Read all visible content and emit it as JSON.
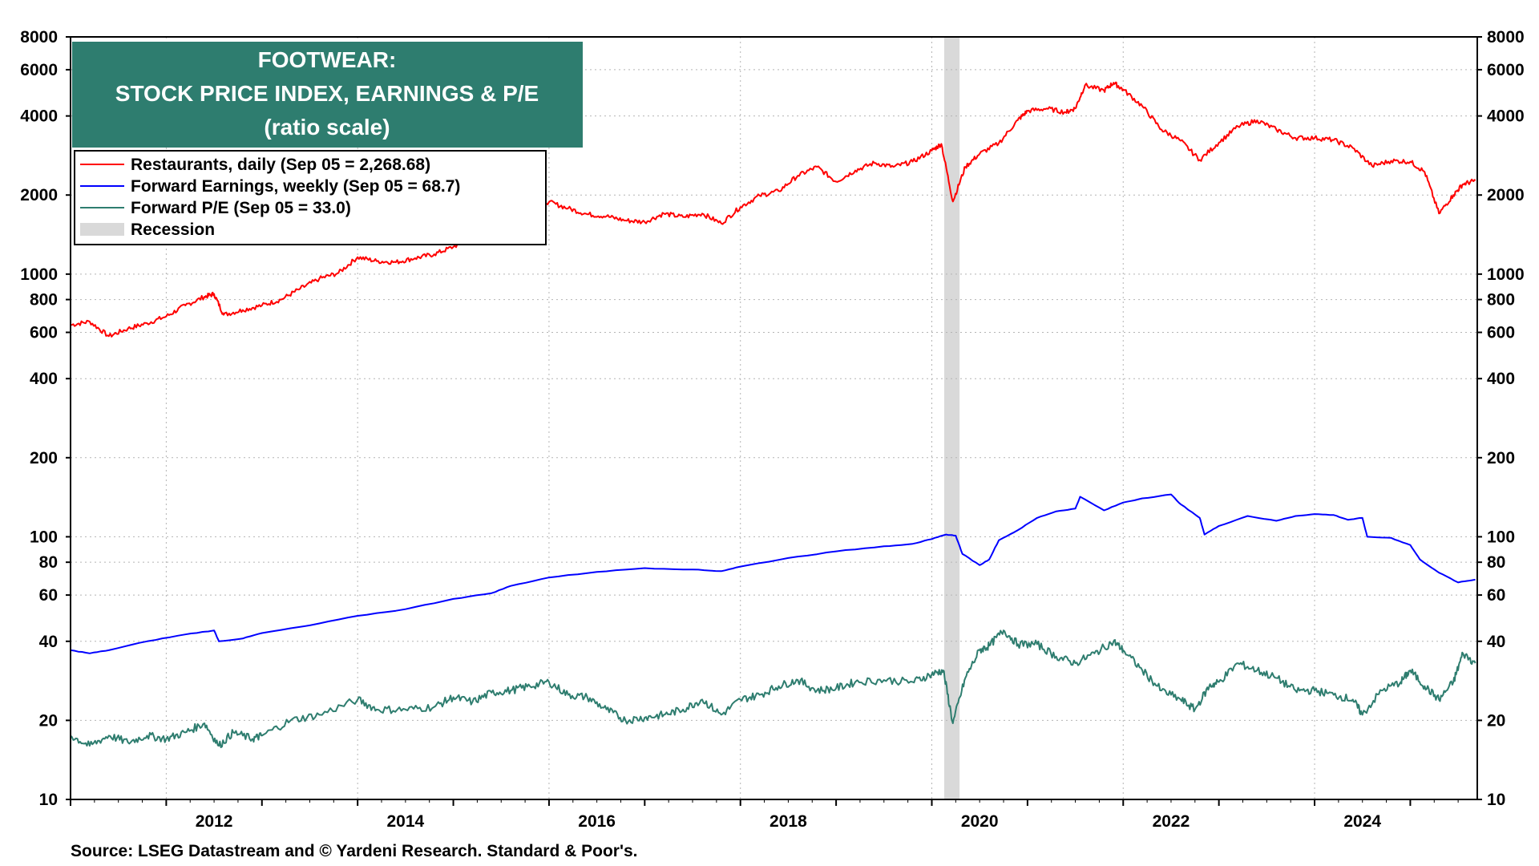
{
  "chart_data": {
    "type": "line",
    "title": [
      "FOOTWEAR:",
      "STOCK PRICE INDEX, EARNINGS & P/E",
      "(ratio scale)"
    ],
    "source": "Source: LSEG Datastream and © Yardeni Research. Standard & Poor's.",
    "y_scale": "log",
    "ylim": [
      10,
      8000
    ],
    "y_ticks": [
      10,
      20,
      40,
      60,
      80,
      100,
      200,
      400,
      600,
      800,
      1000,
      2000,
      4000,
      6000,
      8000
    ],
    "xlim": [
      2011.0,
      2025.7
    ],
    "x_ticks": [
      2012,
      2014,
      2016,
      2018,
      2020,
      2022,
      2024
    ],
    "grid": true,
    "legend_position": "top-left",
    "recession": {
      "label": "Recession",
      "start": 2020.13,
      "end": 2020.29,
      "color": "#d9d9d9"
    },
    "colors": {
      "title_bg": "#2e7d6f",
      "restaurants": "#ff0000",
      "earnings": "#0000ff",
      "pe": "#2e7d6f"
    },
    "series": [
      {
        "name": "Restaurants, daily (Sep 05 = 2,268.68)",
        "color": "#ff0000",
        "points": [
          [
            2011.0,
            640
          ],
          [
            2011.2,
            660
          ],
          [
            2011.4,
            580
          ],
          [
            2011.6,
            620
          ],
          [
            2011.8,
            650
          ],
          [
            2012.0,
            690
          ],
          [
            2012.2,
            760
          ],
          [
            2012.4,
            820
          ],
          [
            2012.5,
            840
          ],
          [
            2012.6,
            700
          ],
          [
            2012.8,
            730
          ],
          [
            2013.0,
            760
          ],
          [
            2013.2,
            800
          ],
          [
            2013.4,
            880
          ],
          [
            2013.6,
            960
          ],
          [
            2013.8,
            1010
          ],
          [
            2014.0,
            1160
          ],
          [
            2014.2,
            1120
          ],
          [
            2014.4,
            1110
          ],
          [
            2014.6,
            1150
          ],
          [
            2014.8,
            1190
          ],
          [
            2015.0,
            1270
          ],
          [
            2015.2,
            1380
          ],
          [
            2015.4,
            1560
          ],
          [
            2015.6,
            1700
          ],
          [
            2015.8,
            1900
          ],
          [
            2016.0,
            1880
          ],
          [
            2016.2,
            1780
          ],
          [
            2016.4,
            1690
          ],
          [
            2016.6,
            1660
          ],
          [
            2016.8,
            1600
          ],
          [
            2017.0,
            1580
          ],
          [
            2017.2,
            1700
          ],
          [
            2017.4,
            1650
          ],
          [
            2017.6,
            1700
          ],
          [
            2017.8,
            1560
          ],
          [
            2018.0,
            1800
          ],
          [
            2018.2,
            1990
          ],
          [
            2018.4,
            2070
          ],
          [
            2018.6,
            2370
          ],
          [
            2018.8,
            2560
          ],
          [
            2019.0,
            2250
          ],
          [
            2019.2,
            2480
          ],
          [
            2019.4,
            2650
          ],
          [
            2019.6,
            2560
          ],
          [
            2019.8,
            2680
          ],
          [
            2020.0,
            2950
          ],
          [
            2020.1,
            3130
          ],
          [
            2020.22,
            1890
          ],
          [
            2020.35,
            2560
          ],
          [
            2020.5,
            2870
          ],
          [
            2020.7,
            3150
          ],
          [
            2020.9,
            3860
          ],
          [
            2021.0,
            4180
          ],
          [
            2021.2,
            4270
          ],
          [
            2021.4,
            4130
          ],
          [
            2021.5,
            4280
          ],
          [
            2021.6,
            5230
          ],
          [
            2021.8,
            5000
          ],
          [
            2021.9,
            5350
          ],
          [
            2022.0,
            5040
          ],
          [
            2022.2,
            4360
          ],
          [
            2022.4,
            3550
          ],
          [
            2022.6,
            3220
          ],
          [
            2022.8,
            2720
          ],
          [
            2023.0,
            3170
          ],
          [
            2023.2,
            3650
          ],
          [
            2023.4,
            3850
          ],
          [
            2023.6,
            3550
          ],
          [
            2023.8,
            3300
          ],
          [
            2024.0,
            3300
          ],
          [
            2024.2,
            3240
          ],
          [
            2024.4,
            3020
          ],
          [
            2024.6,
            2580
          ],
          [
            2024.8,
            2700
          ],
          [
            2025.0,
            2680
          ],
          [
            2025.15,
            2450
          ],
          [
            2025.3,
            1700
          ],
          [
            2025.45,
            2000
          ],
          [
            2025.55,
            2200
          ],
          [
            2025.68,
            2269
          ]
        ]
      },
      {
        "name": "Forward Earnings, weekly (Sep 05 = 68.7)",
        "color": "#0000ff",
        "points": [
          [
            2011.0,
            37.0
          ],
          [
            2011.2,
            36.0
          ],
          [
            2011.4,
            37.0
          ],
          [
            2011.8,
            40.0
          ],
          [
            2012.2,
            42.5
          ],
          [
            2012.5,
            44.0
          ],
          [
            2012.55,
            40.0
          ],
          [
            2012.8,
            41.0
          ],
          [
            2013.0,
            43.0
          ],
          [
            2013.5,
            46.0
          ],
          [
            2014.0,
            50.0
          ],
          [
            2014.5,
            53.0
          ],
          [
            2015.0,
            58.0
          ],
          [
            2015.4,
            61.0
          ],
          [
            2015.6,
            65.0
          ],
          [
            2016.0,
            70.0
          ],
          [
            2016.5,
            73.5
          ],
          [
            2017.0,
            76.0
          ],
          [
            2017.5,
            75.0
          ],
          [
            2017.8,
            74.0
          ],
          [
            2018.0,
            77.0
          ],
          [
            2018.5,
            83.0
          ],
          [
            2019.0,
            88.0
          ],
          [
            2019.5,
            92.0
          ],
          [
            2019.8,
            94.0
          ],
          [
            2020.0,
            98.0
          ],
          [
            2020.15,
            102.0
          ],
          [
            2020.25,
            101.0
          ],
          [
            2020.32,
            86.0
          ],
          [
            2020.5,
            78.0
          ],
          [
            2020.6,
            82.0
          ],
          [
            2020.7,
            97.0
          ],
          [
            2020.9,
            106.0
          ],
          [
            2021.1,
            118.0
          ],
          [
            2021.3,
            125.0
          ],
          [
            2021.5,
            128.0
          ],
          [
            2021.55,
            142.0
          ],
          [
            2021.8,
            126.0
          ],
          [
            2022.0,
            135.0
          ],
          [
            2022.2,
            140.0
          ],
          [
            2022.5,
            145.0
          ],
          [
            2022.6,
            133.0
          ],
          [
            2022.8,
            118.0
          ],
          [
            2022.85,
            102.0
          ],
          [
            2023.0,
            110.0
          ],
          [
            2023.3,
            120.0
          ],
          [
            2023.6,
            115.0
          ],
          [
            2023.8,
            120.0
          ],
          [
            2024.0,
            122.0
          ],
          [
            2024.2,
            121.0
          ],
          [
            2024.35,
            116.0
          ],
          [
            2024.5,
            118.0
          ],
          [
            2024.55,
            100.0
          ],
          [
            2024.8,
            99.0
          ],
          [
            2025.0,
            93.0
          ],
          [
            2025.1,
            82.0
          ],
          [
            2025.3,
            73.0
          ],
          [
            2025.5,
            67.0
          ],
          [
            2025.68,
            68.7
          ]
        ]
      },
      {
        "name": "Forward P/E (Sep 05 = 33.0)",
        "color": "#2e7d6f",
        "points": [
          [
            2011.0,
            17.5
          ],
          [
            2011.2,
            16.0
          ],
          [
            2011.4,
            17.5
          ],
          [
            2011.6,
            16.5
          ],
          [
            2011.8,
            17.5
          ],
          [
            2012.0,
            17.0
          ],
          [
            2012.2,
            18.0
          ],
          [
            2012.4,
            19.5
          ],
          [
            2012.55,
            16.0
          ],
          [
            2012.7,
            18.0
          ],
          [
            2012.9,
            17.0
          ],
          [
            2013.0,
            17.5
          ],
          [
            2013.3,
            20.0
          ],
          [
            2013.6,
            21.0
          ],
          [
            2014.0,
            24.0
          ],
          [
            2014.2,
            22.0
          ],
          [
            2014.5,
            22.0
          ],
          [
            2014.8,
            22.5
          ],
          [
            2015.0,
            24.5
          ],
          [
            2015.2,
            23.5
          ],
          [
            2015.4,
            25.5
          ],
          [
            2015.6,
            26.0
          ],
          [
            2015.8,
            27.0
          ],
          [
            2016.0,
            28.0
          ],
          [
            2016.2,
            25.0
          ],
          [
            2016.4,
            24.5
          ],
          [
            2016.6,
            22.0
          ],
          [
            2016.8,
            20.0
          ],
          [
            2017.0,
            20.5
          ],
          [
            2017.2,
            21.0
          ],
          [
            2017.4,
            22.0
          ],
          [
            2017.6,
            24.0
          ],
          [
            2017.8,
            21.0
          ],
          [
            2018.0,
            24.0
          ],
          [
            2018.2,
            25.0
          ],
          [
            2018.4,
            27.0
          ],
          [
            2018.6,
            28.5
          ],
          [
            2018.8,
            26.0
          ],
          [
            2019.0,
            26.5
          ],
          [
            2019.2,
            28.0
          ],
          [
            2019.5,
            28.5
          ],
          [
            2019.8,
            28.0
          ],
          [
            2020.0,
            30.0
          ],
          [
            2020.12,
            31.0
          ],
          [
            2020.22,
            19.5
          ],
          [
            2020.35,
            29.0
          ],
          [
            2020.5,
            37.0
          ],
          [
            2020.6,
            38.5
          ],
          [
            2020.75,
            44.0
          ],
          [
            2020.9,
            39.0
          ],
          [
            2021.1,
            39.0
          ],
          [
            2021.3,
            35.0
          ],
          [
            2021.5,
            33.0
          ],
          [
            2021.7,
            36.0
          ],
          [
            2021.9,
            40.0
          ],
          [
            2022.0,
            37.0
          ],
          [
            2022.2,
            31.0
          ],
          [
            2022.4,
            26.0
          ],
          [
            2022.6,
            24.0
          ],
          [
            2022.75,
            22.0
          ],
          [
            2022.9,
            27.0
          ],
          [
            2023.0,
            28.0
          ],
          [
            2023.2,
            33.0
          ],
          [
            2023.4,
            31.0
          ],
          [
            2023.6,
            29.0
          ],
          [
            2023.8,
            26.0
          ],
          [
            2024.0,
            26.0
          ],
          [
            2024.2,
            25.0
          ],
          [
            2024.4,
            24.0
          ],
          [
            2024.5,
            21.0
          ],
          [
            2024.7,
            26.0
          ],
          [
            2024.9,
            28.0
          ],
          [
            2025.0,
            31.0
          ],
          [
            2025.15,
            27.0
          ],
          [
            2025.3,
            24.0
          ],
          [
            2025.45,
            28.0
          ],
          [
            2025.55,
            36.0
          ],
          [
            2025.68,
            33.0
          ]
        ]
      }
    ]
  }
}
